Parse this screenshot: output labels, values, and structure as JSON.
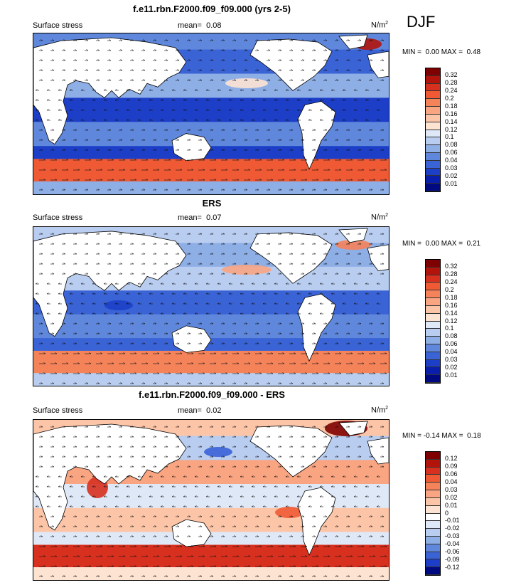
{
  "season": "DJF",
  "panels": [
    {
      "title": "f.e11.rbn.F2000.f09_f09.000 (yrs 2-5)",
      "variable": "Surface stress",
      "mean_label": "mean=",
      "mean_value": "0.08",
      "units": "N/m",
      "units_sup": "2",
      "min_label": "MIN =",
      "min_value": "0.00",
      "max_label": "MAX =",
      "max_value": "0.48",
      "colorbar_ticks": [
        "0.32",
        "0.28",
        "0.24",
        "0.2",
        "0.18",
        "0.16",
        "0.14",
        "0.12",
        "0.1",
        "0.08",
        "0.06",
        "0.04",
        "0.03",
        "0.02",
        "0.01"
      ]
    },
    {
      "title": "ERS",
      "variable": "Surface stress",
      "mean_label": "mean=",
      "mean_value": "0.07",
      "units": "N/m",
      "units_sup": "2",
      "min_label": "MIN =",
      "min_value": "0.00",
      "max_label": "MAX =",
      "max_value": "0.21",
      "colorbar_ticks": [
        "0.32",
        "0.28",
        "0.24",
        "0.2",
        "0.18",
        "0.16",
        "0.14",
        "0.12",
        "0.1",
        "0.08",
        "0.06",
        "0.04",
        "0.03",
        "0.02",
        "0.01"
      ]
    },
    {
      "title": "f.e11.rbn.F2000.f09_f09.000 - ERS",
      "variable": "Surface stress",
      "mean_label": "mean=",
      "mean_value": "0.02",
      "units": "N/m",
      "units_sup": "2",
      "min_label": "MIN =",
      "min_value": "-0.14",
      "max_label": "MAX =",
      "max_value": "0.18",
      "colorbar_ticks": [
        "0.12",
        "0.09",
        "0.06",
        "0.04",
        "0.03",
        "0.02",
        "0.01",
        "0",
        "-0.01",
        "-0.02",
        "-0.03",
        "-0.04",
        "-0.06",
        "-0.09",
        "-0.12"
      ]
    }
  ],
  "colors": {
    "sequential": [
      "#7f0000",
      "#b2140c",
      "#d7301f",
      "#ef5a34",
      "#f5835a",
      "#f9a582",
      "#fcc5a8",
      "#fde3d2",
      "#dfe8f7",
      "#b9cdf0",
      "#8eaee6",
      "#5f88dc",
      "#3a63d6",
      "#1d3fc8",
      "#0a1eac",
      "#000a80"
    ],
    "diverging": [
      "#7f0000",
      "#b2140c",
      "#d7301f",
      "#ef5a34",
      "#f5835a",
      "#f9a582",
      "#fcc5a8",
      "#fde3d2",
      "#ffffff",
      "#dfe8f7",
      "#b9cdf0",
      "#8eaee6",
      "#5f88dc",
      "#3a63d6",
      "#1d3fc8",
      "#000a80"
    ]
  }
}
